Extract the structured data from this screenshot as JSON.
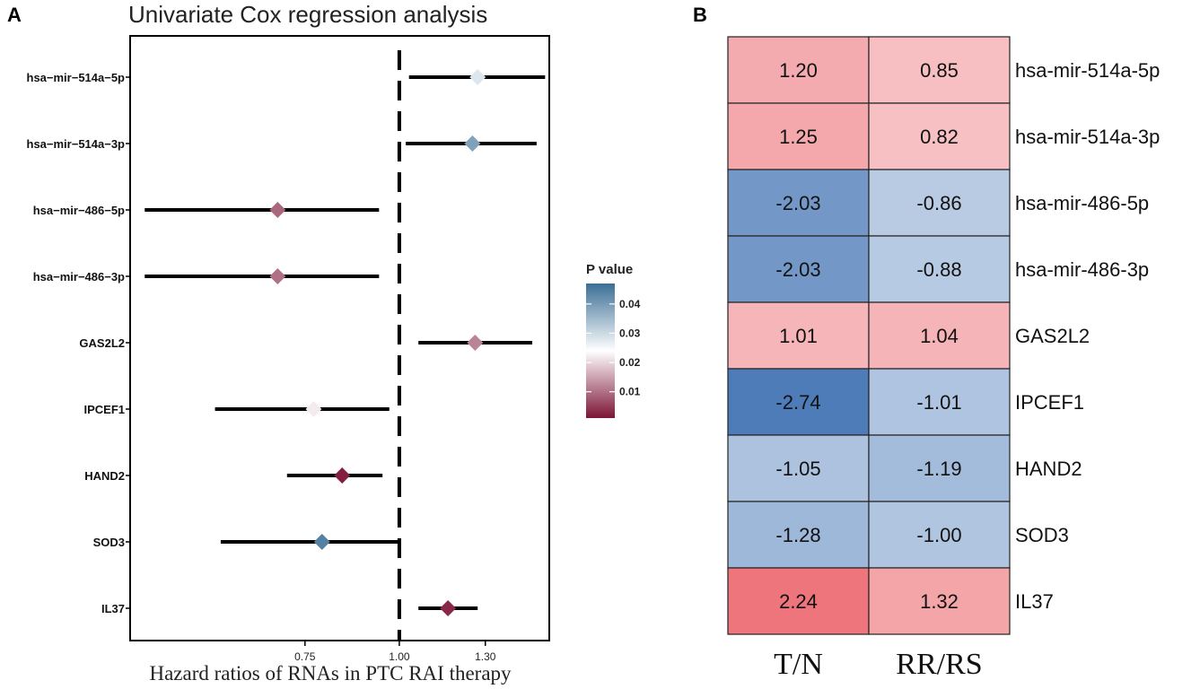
{
  "chart_data": [
    {
      "type": "forest",
      "panel": "A",
      "title": "Univariate Cox regression analysis",
      "xlabel": "Hazard ratios of RNAs in PTC RAI  therapy",
      "ylabel": "",
      "x_scale": "log",
      "xlim": [
        0.44,
        1.58
      ],
      "xticks": [
        {
          "value": 0.75,
          "label": "0.75"
        },
        {
          "value": 1.0,
          "label": "1.00"
        },
        {
          "value": 1.3,
          "label": "1.30"
        }
      ],
      "reference_line": 1.0,
      "rows": [
        {
          "label": "hsa−mir−514a−5p",
          "hr": 1.27,
          "lower": 1.03,
          "upper": 1.56,
          "p": 0.028
        },
        {
          "label": "hsa−mir−514a−3p",
          "hr": 1.25,
          "lower": 1.02,
          "upper": 1.52,
          "p": 0.039
        },
        {
          "label": "hsa−mir−486−5p",
          "hr": 0.69,
          "lower": 0.46,
          "upper": 0.94,
          "p": 0.009
        },
        {
          "label": "hsa−mir−486−3p",
          "hr": 0.69,
          "lower": 0.46,
          "upper": 0.94,
          "p": 0.01
        },
        {
          "label": "GAS2L2",
          "hr": 1.26,
          "lower": 1.06,
          "upper": 1.5,
          "p": 0.012
        },
        {
          "label": "IPCEF1",
          "hr": 0.77,
          "lower": 0.57,
          "upper": 0.97,
          "p": 0.022
        },
        {
          "label": "HAND2",
          "hr": 0.84,
          "lower": 0.71,
          "upper": 0.95,
          "p": 0.002
        },
        {
          "label": "SOD3",
          "hr": 0.79,
          "lower": 0.58,
          "upper": 1.0,
          "p": 0.044
        },
        {
          "label": "IL37",
          "hr": 1.16,
          "lower": 1.06,
          "upper": 1.27,
          "p": 0.003
        }
      ],
      "legend": {
        "title": "P value",
        "placement": "right",
        "ticks": [
          0.04,
          0.03,
          0.02,
          0.01
        ],
        "tick_labels": [
          "0.04",
          "0.03",
          "0.02",
          "0.01"
        ],
        "range": [
          0.001,
          0.047
        ],
        "colors": {
          "low": "#7d1436",
          "mid": "#ffffff",
          "high": "#3b6f95"
        }
      }
    },
    {
      "type": "heatmap",
      "panel": "B",
      "columns": [
        "T/N",
        "RR/RS"
      ],
      "rows": [
        "hsa-mir-514a-5p",
        "hsa-mir-514a-3p",
        "hsa-mir-486-5p",
        "hsa-mir-486-3p",
        "GAS2L2",
        "IPCEF1",
        "HAND2",
        "SOD3",
        "IL37"
      ],
      "values": [
        [
          1.2,
          0.85
        ],
        [
          1.25,
          0.82
        ],
        [
          -2.03,
          -0.86
        ],
        [
          -2.03,
          -0.88
        ],
        [
          1.01,
          1.04
        ],
        [
          -2.74,
          -1.01
        ],
        [
          -1.05,
          -1.19
        ],
        [
          -1.28,
          -1.0
        ],
        [
          2.24,
          1.32
        ]
      ],
      "value_labels": [
        [
          "1.20",
          "0.85"
        ],
        [
          "1.25",
          "0.82"
        ],
        [
          "-2.03",
          "-0.86"
        ],
        [
          "-2.03",
          "-0.88"
        ],
        [
          "1.01",
          "1.04"
        ],
        [
          "-2.74",
          "-1.01"
        ],
        [
          "-1.05",
          "-1.19"
        ],
        [
          "-1.28",
          "-1.00"
        ],
        [
          "2.24",
          "1.32"
        ]
      ],
      "colors": {
        "negative": "#4a7ab8",
        "neutral": "#ffffff",
        "positive": "#ea5a61"
      }
    }
  ]
}
